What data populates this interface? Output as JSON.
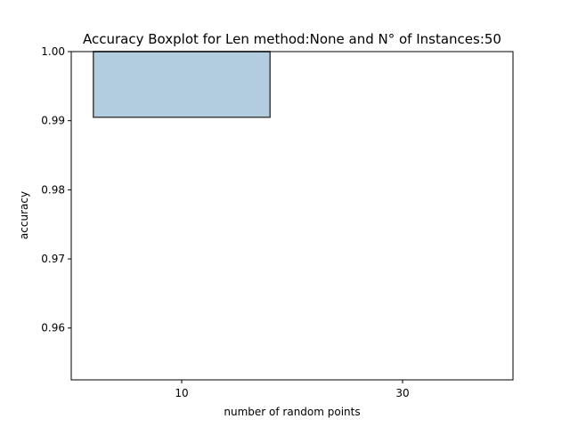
{
  "chart_data": {
    "type": "box",
    "title": "Accuracy Boxplot for Len method:None and N° of Instances:50",
    "xlabel": "number of random points",
    "ylabel": "accuracy",
    "categories": [
      "10",
      "30"
    ],
    "ylim": [
      0.9525,
      1.0
    ],
    "yticks": [
      0.96,
      0.97,
      0.98,
      0.99,
      1.0
    ],
    "ytick_labels": [
      "0.96",
      "0.97",
      "0.98",
      "0.99",
      "1.00"
    ],
    "grid": false,
    "boxes": [
      {
        "category": "10",
        "q1": 0.9905,
        "median": 1.0,
        "q3": 1.0,
        "whisker_low": 0.9905,
        "whisker_high": 1.0,
        "color": "#b3cde0"
      }
    ],
    "box_edge_color": "#3f3f3f"
  }
}
